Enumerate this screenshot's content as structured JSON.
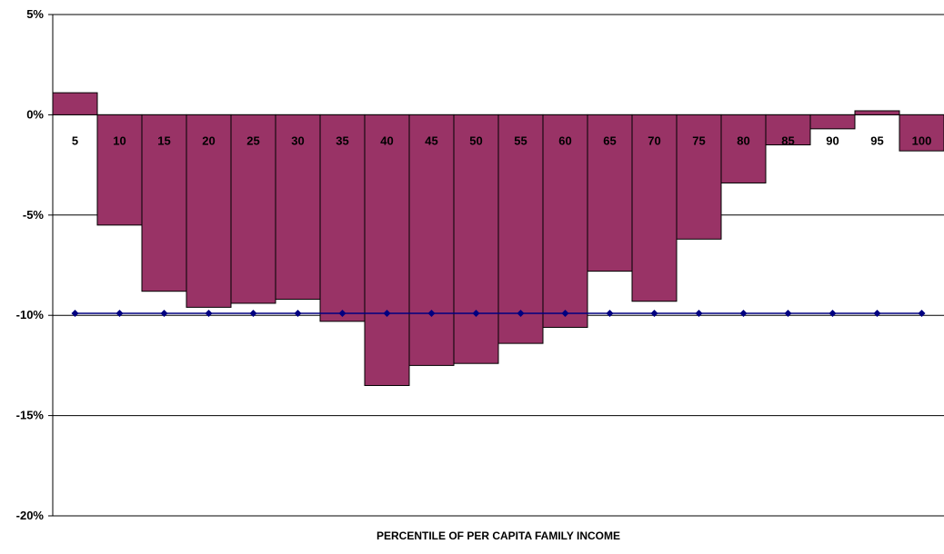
{
  "chart_data": {
    "type": "bar",
    "title": "",
    "xlabel": "PERCENTILE OF PER CAPITA FAMILY INCOME",
    "ylabel": "",
    "ylim": [
      -20,
      5
    ],
    "yticks": [
      5,
      0,
      -5,
      -10,
      -15,
      -20
    ],
    "ytick_labels": [
      "5%",
      "0%",
      "-5%",
      "-10%",
      "-15%",
      "-20%"
    ],
    "categories": [
      "5",
      "10",
      "15",
      "20",
      "25",
      "30",
      "35",
      "40",
      "45",
      "50",
      "55",
      "60",
      "65",
      "70",
      "75",
      "80",
      "85",
      "90",
      "95",
      "100"
    ],
    "series": [
      {
        "type": "bar",
        "values": [
          1.1,
          -5.5,
          -8.8,
          -9.6,
          -9.4,
          -9.2,
          -10.3,
          -13.5,
          -12.5,
          -12.4,
          -11.4,
          -10.6,
          -7.8,
          -9.3,
          -6.2,
          -3.4,
          -1.5,
          -0.7,
          0.2,
          -1.8
        ],
        "color": "#993366"
      },
      {
        "type": "line",
        "values": [
          -9.9,
          -9.9,
          -9.9,
          -9.9,
          -9.9,
          -9.9,
          -9.9,
          -9.9,
          -9.9,
          -9.9,
          -9.9,
          -9.9,
          -9.9,
          -9.9,
          -9.9,
          -9.9,
          -9.9,
          -9.9,
          -9.9,
          -9.9
        ],
        "color": "#000080"
      }
    ],
    "grid": true,
    "legend": "none"
  }
}
